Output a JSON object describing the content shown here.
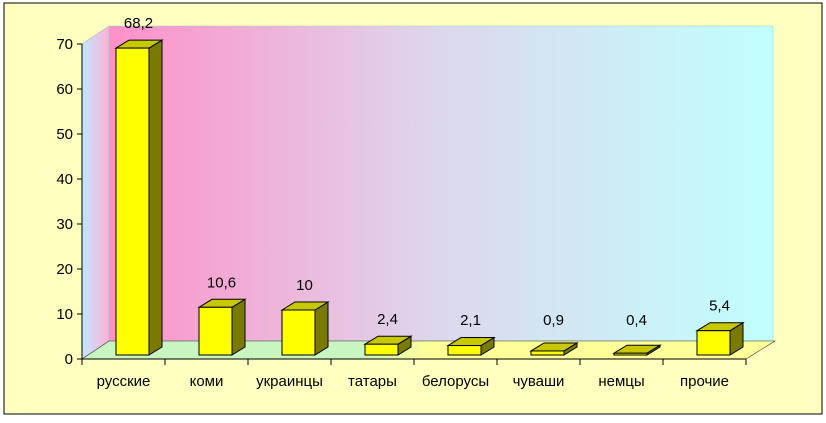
{
  "chart_data": {
    "type": "bar",
    "categories": [
      "русские",
      "коми",
      "украинцы",
      "татары",
      "белорусы",
      "чуваши",
      "немцы",
      "прочие"
    ],
    "values": [
      68.2,
      10.6,
      10,
      2.4,
      2.1,
      0.9,
      0.4,
      5.4
    ],
    "value_labels": [
      "68,2",
      "10,6",
      "10",
      "2,4",
      "2,1",
      "0,9",
      "0,4",
      "5,4"
    ],
    "y_ticks": [
      "0",
      "10",
      "20",
      "30",
      "40",
      "50",
      "60",
      "70"
    ],
    "ylim": [
      0,
      70
    ],
    "title": "",
    "xlabel": "",
    "ylabel": "",
    "grid": false,
    "legend": "none",
    "colors": {
      "bar_front": "#ffff00",
      "bar_top": "#c8c800",
      "bar_side": "#7a7a00",
      "frame_bg": "#ffffc0",
      "floor_left": "#c8f5c0",
      "floor_right": "#ffff99",
      "wall_gradient": [
        "#ff90c8",
        "#dcd8ec",
        "#c0ffff"
      ]
    }
  }
}
